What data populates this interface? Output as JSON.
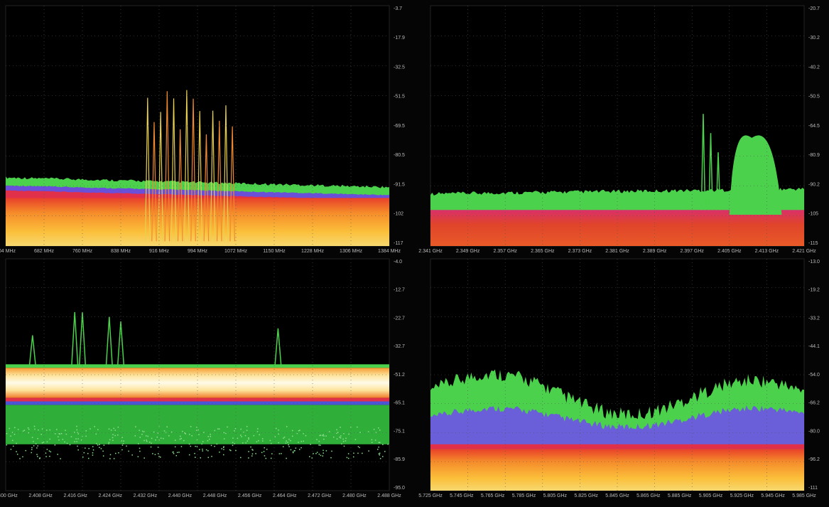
{
  "panels": [
    {
      "x_labels": [
        "604 MHz",
        "682 MHz",
        "760 MHz",
        "838 MHz",
        "916 MHz",
        "994 MHz",
        "1072 MHz",
        "1150 MHz",
        "1228 MHz",
        "1306 MHz",
        "1384 MHz"
      ],
      "y_labels": [
        "-3.7",
        "-17.9",
        "-32.5",
        "-51.5",
        "-69.5",
        "-80.5",
        "-91.5",
        "-102",
        "-117"
      ]
    },
    {
      "x_labels": [
        "2.341 GHz",
        "2.349 GHz",
        "2.357 GHz",
        "2.365 GHz",
        "2.373 GHz",
        "2.381 GHz",
        "2.389 GHz",
        "2.397 GHz",
        "2.405 GHz",
        "2.413 GHz",
        "2.421 GHz"
      ],
      "y_labels": [
        "-20.7",
        "-30.2",
        "-40.2",
        "-50.5",
        "-64.5",
        "-80.9",
        "-90.2",
        "-105",
        "-115"
      ]
    },
    {
      "x_labels": [
        "2.400 GHz",
        "2.408 GHz",
        "2.416 GHz",
        "2.424 GHz",
        "2.432 GHz",
        "2.440 GHz",
        "2.448 GHz",
        "2.456 GHz",
        "2.464 GHz",
        "2.472 GHz",
        "2.480 GHz",
        "2.488 GHz"
      ],
      "y_labels": [
        "-4.0",
        "-12.7",
        "-22.7",
        "-32.7",
        "-51.2",
        "-65.1",
        "-75.1",
        "-85.9",
        "-95.0"
      ]
    },
    {
      "x_labels": [
        "5.725 GHz",
        "5.745 GHz",
        "5.765 GHz",
        "5.785 GHz",
        "5.805 GHz",
        "5.825 GHz",
        "5.845 GHz",
        "5.865 GHz",
        "5.885 GHz",
        "5.905 GHz",
        "5.925 GHz",
        "5.945 GHz",
        "5.985 GHz"
      ],
      "y_labels": [
        "-13.0",
        "-19.2",
        "-33.2",
        "-44.1",
        "-54.0",
        "-66.2",
        "-80.0",
        "-96.2",
        "-111"
      ]
    }
  ]
}
